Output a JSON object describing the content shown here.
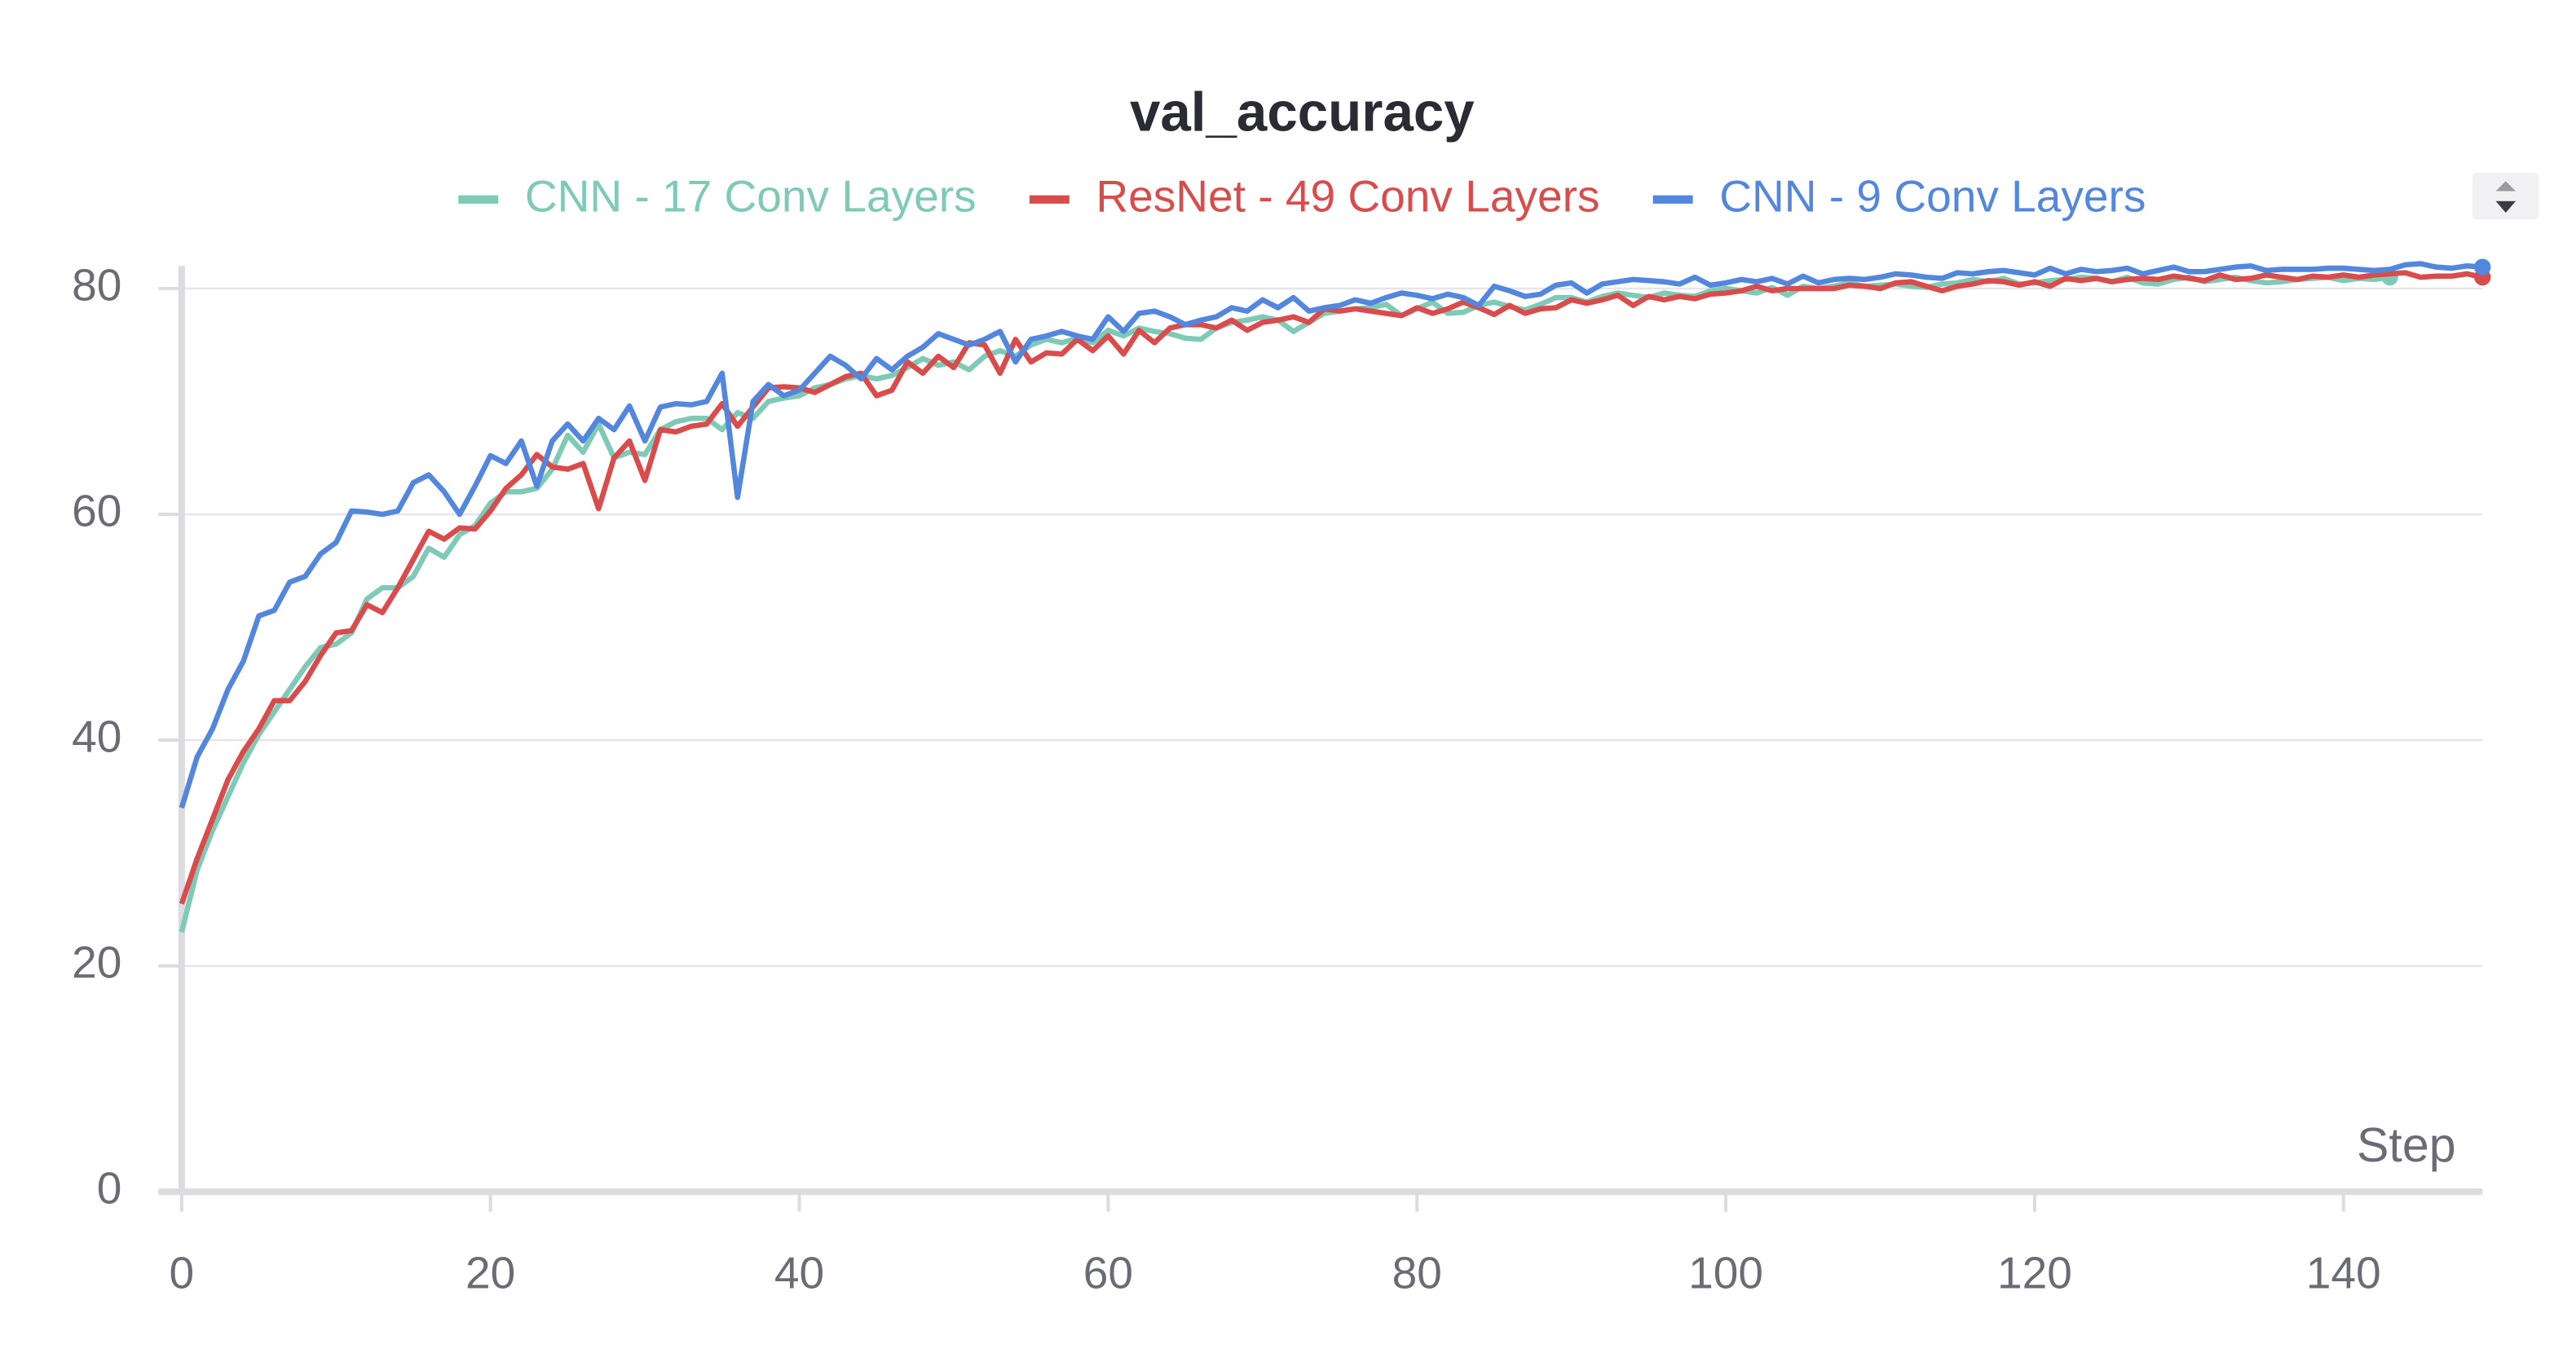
{
  "chart_data": {
    "type": "line",
    "title": "val_accuracy",
    "xlabel": "Step",
    "x": [
      0,
      1,
      2,
      3,
      4,
      5,
      6,
      7,
      8,
      9,
      10,
      11,
      12,
      13,
      14,
      15,
      16,
      17,
      18,
      19,
      20,
      21,
      22,
      23,
      24,
      25,
      26,
      27,
      28,
      29,
      30,
      31,
      32,
      33,
      34,
      35,
      36,
      37,
      38,
      39,
      40,
      41,
      42,
      43,
      44,
      45,
      46,
      47,
      48,
      49,
      50,
      51,
      52,
      53,
      54,
      55,
      56,
      57,
      58,
      59,
      60,
      61,
      62,
      63,
      64,
      65,
      66,
      67,
      68,
      69,
      70,
      71,
      72,
      73,
      74,
      75,
      76,
      77,
      78,
      79,
      80,
      81,
      82,
      83,
      84,
      85,
      86,
      87,
      88,
      89,
      90,
      91,
      92,
      93,
      94,
      95,
      96,
      97,
      98,
      99,
      100,
      101,
      102,
      103,
      104,
      105,
      106,
      107,
      108,
      109,
      110,
      111,
      112,
      113,
      114,
      115,
      116,
      117,
      118,
      119,
      120,
      121,
      122,
      123,
      124,
      125,
      126,
      127,
      128,
      129,
      130,
      131,
      132,
      133,
      134,
      135,
      136,
      137,
      138,
      139,
      140,
      141,
      142,
      143,
      144,
      145,
      146,
      147,
      148,
      149
    ],
    "series": [
      {
        "name": "CNN - 17 Conv Layers",
        "color": "#7ecab6",
        "values": [
          23,
          28.5,
          32,
          35,
          38,
          40.5,
          42.5,
          44.5,
          46.5,
          48.2,
          48.5,
          49.5,
          52.5,
          53.5,
          53.5,
          54.5,
          57,
          56.2,
          58.2,
          59,
          61,
          62,
          62,
          62.3,
          64,
          67,
          65.5,
          68,
          65,
          65.5,
          65.3,
          67.5,
          68.2,
          68.5,
          68.5,
          67.5,
          69,
          68.5,
          70,
          70.3,
          70.5,
          71.2,
          71.5,
          72,
          72.3,
          72,
          72.3,
          73,
          73.8,
          73.2,
          73.5,
          72.8,
          74,
          74.5,
          74,
          75,
          75.5,
          75.2,
          75.6,
          75.2,
          76.3,
          75.8,
          76.5,
          76.2,
          76,
          75.6,
          75.5,
          76.5,
          77,
          77.2,
          77.5,
          77.2,
          76.2,
          77,
          77.8,
          78,
          78.2,
          78.3,
          78.6,
          77.6,
          78.2,
          78.8,
          77.8,
          77.9,
          78.5,
          78.8,
          78.4,
          78.1,
          78.6,
          79.2,
          79.2,
          78.8,
          79.3,
          79.6,
          79.4,
          79.2,
          79.6,
          79.4,
          79.3,
          79.8,
          80,
          79.8,
          79.6,
          80.1,
          79.4,
          80.2,
          80,
          80.2,
          80.5,
          80.2,
          80.3,
          80.4,
          80.2,
          80.1,
          80.4,
          80.5,
          80.8,
          80.6,
          80.9,
          80.4,
          80.5,
          80.7,
          80.8,
          81,
          80.9,
          80.6,
          81,
          80.5,
          80.4,
          80.8,
          81,
          80.6,
          80.8,
          81,
          80.7,
          80.5,
          80.6,
          80.8,
          80.9,
          81,
          80.7,
          80.9,
          80.8,
          81,
          null,
          null,
          null,
          null,
          null,
          null
        ]
      },
      {
        "name": "ResNet - 49 Conv Layers",
        "color": "#da4c4c",
        "values": [
          25.5,
          29.5,
          33,
          36.5,
          39,
          41,
          43.5,
          43.5,
          45.2,
          47.5,
          49.5,
          49.7,
          52,
          51.3,
          53.5,
          56,
          58.5,
          57.8,
          58.8,
          58.7,
          60.3,
          62.3,
          63.5,
          65.3,
          64.2,
          64,
          64.5,
          60.5,
          65,
          66.5,
          63,
          67.5,
          67.3,
          67.8,
          68,
          69.8,
          67.8,
          69.5,
          71.2,
          71.3,
          71.2,
          70.8,
          71.5,
          72.2,
          72.5,
          70.5,
          71,
          73.5,
          72.5,
          74,
          73,
          75.2,
          75,
          72.5,
          75.5,
          73.5,
          74.3,
          74.2,
          75.5,
          74.5,
          75.8,
          74.2,
          76.3,
          75.2,
          76.5,
          76.8,
          76.8,
          76.5,
          77.2,
          76.3,
          77,
          77.2,
          77.5,
          77,
          78.2,
          78,
          78.2,
          78,
          77.8,
          77.6,
          78.3,
          77.8,
          78.2,
          78.8,
          78.3,
          77.7,
          78.5,
          77.8,
          78.2,
          78.3,
          79,
          78.7,
          79,
          79.4,
          78.5,
          79.3,
          79,
          79.3,
          79.1,
          79.5,
          79.6,
          79.8,
          80.2,
          79.8,
          80,
          80,
          80,
          80,
          80.3,
          80.2,
          80,
          80.5,
          80.6,
          80.2,
          79.8,
          80.2,
          80.4,
          80.7,
          80.6,
          80.3,
          80.6,
          80.2,
          80.9,
          80.7,
          80.9,
          80.6,
          80.8,
          80.9,
          80.8,
          81.1,
          80.9,
          80.7,
          81.2,
          80.8,
          80.9,
          81.2,
          81,
          80.8,
          81.1,
          81,
          81.2,
          81,
          81.2,
          81.3,
          81.4,
          81,
          81.1,
          81.1,
          81.3,
          81
        ]
      },
      {
        "name": "CNN - 9 Conv Layers",
        "color": "#5387dd",
        "values": [
          34,
          38.5,
          41,
          44.5,
          47,
          51,
          51.5,
          54,
          54.5,
          56.5,
          57.5,
          60.3,
          60.2,
          60,
          60.3,
          62.8,
          63.5,
          62,
          60,
          62.5,
          65.2,
          64.5,
          66.5,
          62.5,
          66.5,
          68,
          66.5,
          68.5,
          67.5,
          69.6,
          66.5,
          69.5,
          69.8,
          69.7,
          70,
          72.5,
          61.5,
          70,
          71.5,
          70.5,
          71,
          72.5,
          74,
          73.2,
          72,
          73.8,
          72.8,
          74,
          74.8,
          76,
          75.5,
          75,
          75.5,
          76.2,
          73.5,
          75.5,
          75.8,
          76.2,
          75.8,
          75.5,
          77.5,
          76.2,
          77.8,
          78,
          77.5,
          76.8,
          77.2,
          77.5,
          78.3,
          78,
          79,
          78.3,
          79.2,
          78,
          78.3,
          78.5,
          79,
          78.7,
          79.2,
          79.6,
          79.4,
          79.1,
          79.5,
          79.2,
          78.5,
          80.2,
          79.8,
          79.3,
          79.5,
          80.3,
          80.5,
          79.6,
          80.4,
          80.6,
          80.8,
          80.7,
          80.6,
          80.4,
          81,
          80.3,
          80.5,
          80.8,
          80.6,
          80.9,
          80.4,
          81.1,
          80.5,
          80.8,
          80.9,
          80.8,
          81,
          81.3,
          81.2,
          81,
          80.9,
          81.4,
          81.3,
          81.5,
          81.6,
          81.4,
          81.2,
          81.8,
          81.3,
          81.7,
          81.5,
          81.6,
          81.8,
          81.3,
          81.6,
          81.9,
          81.5,
          81.5,
          81.7,
          81.9,
          82,
          81.6,
          81.7,
          81.7,
          81.7,
          81.8,
          81.8,
          81.7,
          81.6,
          81.7,
          82.1,
          82.2,
          81.9,
          81.8,
          82,
          81.9
        ]
      }
    ],
    "xlim": [
      0,
      149
    ],
    "ylim": [
      0,
      82
    ],
    "xticks": [
      0,
      20,
      40,
      60,
      80,
      100,
      120,
      140
    ],
    "yticks": [
      0,
      20,
      40,
      60,
      80
    ],
    "grid": true,
    "legend": "top"
  }
}
